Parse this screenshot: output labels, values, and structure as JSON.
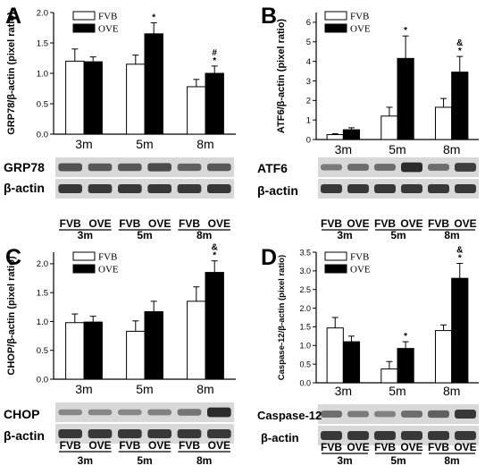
{
  "chart_data": [
    {
      "panel": "A",
      "type": "bar",
      "ylabel": "GRP78/β-actin (pixel ratio)",
      "ylim": [
        0,
        2.0
      ],
      "yticks": [
        "0.0",
        "0.5",
        "1.0",
        "1.5",
        "2.0"
      ],
      "categories": [
        "3m",
        "5m",
        "8m"
      ],
      "series": [
        {
          "name": "FVB",
          "values": [
            1.2,
            1.15,
            0.78
          ],
          "errors": [
            0.2,
            0.15,
            0.12
          ]
        },
        {
          "name": "OVE",
          "values": [
            1.19,
            1.65,
            1.0
          ],
          "errors": [
            0.08,
            0.18,
            0.12
          ]
        }
      ],
      "annotations": [
        {
          "category": "5m",
          "series": "OVE",
          "marks": [
            "*"
          ]
        },
        {
          "category": "8m",
          "series": "OVE",
          "marks": [
            "#",
            "*"
          ]
        }
      ],
      "blot": {
        "rows": [
          "GRP78",
          "β-actin"
        ],
        "lane_labels": [
          "FVB",
          "OVE"
        ],
        "groups": [
          "3m",
          "5m",
          "8m"
        ]
      }
    },
    {
      "panel": "B",
      "type": "bar",
      "ylabel": "ATF6/β-actin (pixel ratio)",
      "ylim": [
        0,
        6.5
      ],
      "yticks": [
        "0",
        "1",
        "2",
        "3",
        "4",
        "5",
        "6"
      ],
      "categories": [
        "3m",
        "5m",
        "8m"
      ],
      "series": [
        {
          "name": "FVB",
          "values": [
            0.25,
            1.2,
            1.65
          ],
          "errors": [
            0.05,
            0.45,
            0.45
          ]
        },
        {
          "name": "OVE",
          "values": [
            0.5,
            4.15,
            3.45
          ],
          "errors": [
            0.1,
            1.15,
            0.8
          ]
        }
      ],
      "annotations": [
        {
          "category": "5m",
          "series": "OVE",
          "marks": [
            "*"
          ]
        },
        {
          "category": "8m",
          "series": "OVE",
          "marks": [
            "&",
            "*"
          ]
        }
      ],
      "blot": {
        "rows": [
          "ATF6",
          "β-actin"
        ],
        "lane_labels": [
          "FVB",
          "OVE"
        ],
        "groups": [
          "3m",
          "5m",
          "8m"
        ]
      }
    },
    {
      "panel": "C",
      "type": "bar",
      "ylabel": "CHOP/β-actin (pixel ratio)",
      "ylim": [
        0,
        2.2
      ],
      "yticks": [
        "0.0",
        "0.5",
        "1.0",
        "1.5",
        "2.0"
      ],
      "categories": [
        "3m",
        "5m",
        "8m"
      ],
      "series": [
        {
          "name": "FVB",
          "values": [
            0.98,
            0.83,
            1.35
          ],
          "errors": [
            0.15,
            0.18,
            0.25
          ]
        },
        {
          "name": "OVE",
          "values": [
            0.99,
            1.17,
            1.85
          ],
          "errors": [
            0.1,
            0.18,
            0.2
          ]
        }
      ],
      "annotations": [
        {
          "category": "8m",
          "series": "OVE",
          "marks": [
            "&",
            "*"
          ]
        }
      ],
      "blot": {
        "rows": [
          "CHOP",
          "β-actin"
        ],
        "lane_labels": [
          "FVB",
          "OVE"
        ],
        "groups": [
          "3m",
          "5m",
          "8m"
        ]
      }
    },
    {
      "panel": "D",
      "type": "bar",
      "ylabel": "Caspase-12/β-actin (pixel ratio)",
      "ylim": [
        0,
        3.5
      ],
      "yticks": [
        "0.0",
        "0.5",
        "1.0",
        "1.5",
        "2.0",
        "2.5",
        "3.0",
        "3.5"
      ],
      "categories": [
        "3m",
        "5m",
        "8m"
      ],
      "series": [
        {
          "name": "FVB",
          "values": [
            1.47,
            0.37,
            1.4
          ],
          "errors": [
            0.28,
            0.2,
            0.15
          ]
        },
        {
          "name": "OVE",
          "values": [
            1.1,
            0.92,
            2.8
          ],
          "errors": [
            0.15,
            0.18,
            0.4
          ]
        }
      ],
      "annotations": [
        {
          "category": "5m",
          "series": "OVE",
          "marks": [
            "*"
          ]
        },
        {
          "category": "8m",
          "series": "OVE",
          "marks": [
            "&",
            "*"
          ]
        }
      ],
      "blot": {
        "rows": [
          "Caspase-12",
          "β-actin"
        ],
        "lane_labels": [
          "FVB",
          "OVE"
        ],
        "groups": [
          "3m",
          "5m",
          "8m"
        ]
      }
    }
  ],
  "style": {
    "fvb_fill": "#ffffff",
    "ove_fill": "#000000",
    "blot_bg": "#d8d8d8",
    "band_color": "#1a1a1a"
  }
}
